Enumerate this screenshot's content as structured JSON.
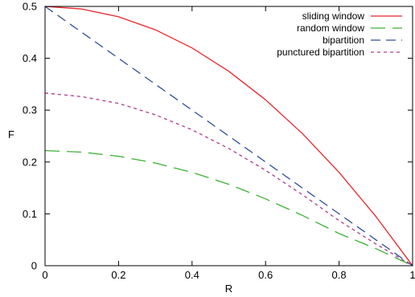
{
  "chart_data": {
    "type": "line",
    "title": "",
    "xlabel": "R",
    "ylabel": "F",
    "xlim": [
      0,
      1
    ],
    "ylim": [
      0,
      0.5
    ],
    "x_ticks": [
      "0",
      "0.2",
      "0.4",
      "0.6",
      "0.8",
      "1"
    ],
    "y_ticks": [
      "0",
      "0.1",
      "0.2",
      "0.3",
      "0.4",
      "0.5"
    ],
    "grid": false,
    "legend_position": "top-right",
    "x": [
      0,
      0.1,
      0.2,
      0.3,
      0.4,
      0.5,
      0.6,
      0.7,
      0.8,
      0.9,
      1.0
    ],
    "series": [
      {
        "name": "sliding window",
        "color": "#e8262b",
        "dash": "solid",
        "values": [
          0.5,
          0.495,
          0.48,
          0.455,
          0.42,
          0.375,
          0.32,
          0.255,
          0.18,
          0.095,
          0.0
        ]
      },
      {
        "name": "random window",
        "color": "#3bb134",
        "dash": "long-dash",
        "values": [
          0.222,
          0.219,
          0.211,
          0.198,
          0.18,
          0.157,
          0.129,
          0.097,
          0.062,
          0.033,
          0.0
        ]
      },
      {
        "name": "bipartition",
        "color": "#2e4f9e",
        "dash": "dash",
        "values": [
          0.5,
          0.45,
          0.4,
          0.35,
          0.3,
          0.25,
          0.2,
          0.15,
          0.1,
          0.05,
          0.0
        ]
      },
      {
        "name": "punctured bipartition",
        "color": "#b03a8a",
        "dash": "short-dash",
        "values": [
          0.333,
          0.326,
          0.313,
          0.291,
          0.262,
          0.226,
          0.184,
          0.137,
          0.087,
          0.042,
          0.0
        ]
      }
    ]
  }
}
